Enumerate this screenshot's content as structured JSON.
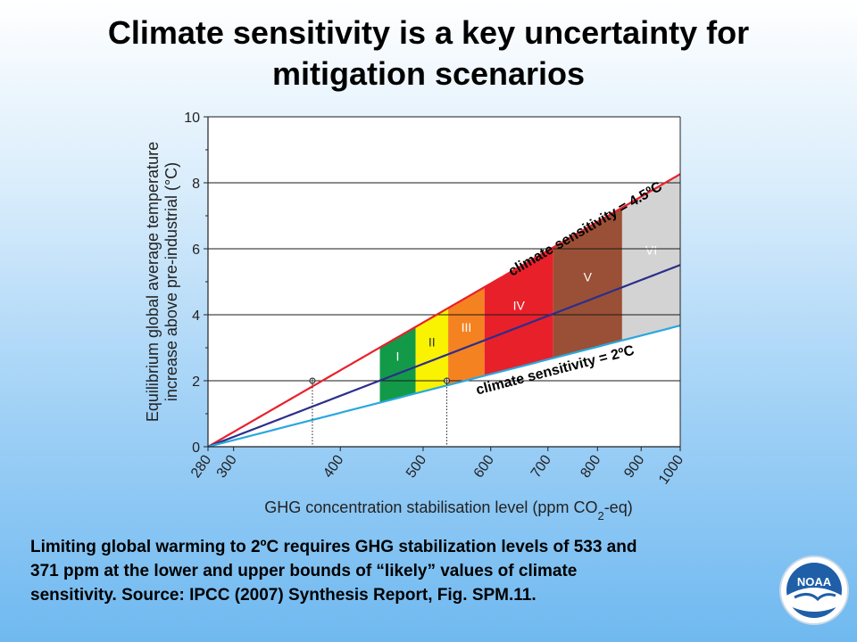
{
  "slide": {
    "title": "Climate sensitivity is a key uncertainty for\nmitigation scenarios",
    "caption_line1": "Limiting global warming to 2ºC requires GHG stabilization levels of 533 and",
    "caption_line2": "371 ppm at the lower and upper bounds of “likely” values of climate",
    "caption_line3": "sensitivity.  Source: IPCC (2007) Synthesis Report, Fig. SPM.11.",
    "logo_text": "NOAA"
  },
  "chart_data": {
    "type": "area",
    "xlabel": "GHG concentration stabilisation level (ppm CO",
    "xlabel_sub": "2",
    "xlabel_suffix": "-eq)",
    "ylabel_line1": "Equilibrium global average temperature",
    "ylabel_line2": "increase above pre-industrial (°C)",
    "x_scale": "log",
    "xlim": [
      280,
      1000
    ],
    "ylim": [
      0,
      10
    ],
    "x_ticks": [
      280,
      300,
      400,
      500,
      600,
      700,
      800,
      900,
      1000
    ],
    "y_ticks": [
      0,
      2,
      4,
      6,
      8,
      10
    ],
    "grid": "horizontal",
    "climate_sensitivities": [
      2.0,
      3.0,
      4.5
    ],
    "curves": [
      {
        "name": "climate sensitivity = 4.5ºC",
        "sensitivity": 4.5,
        "color": "#e8202a"
      },
      {
        "name": "",
        "sensitivity": 3.0,
        "color": "#2b2e8c"
      },
      {
        "name": "climate sensitivity = 2ºC",
        "sensitivity": 2.0,
        "color": "#29a8e0"
      }
    ],
    "categories": [
      {
        "label": "I",
        "range": [
          445,
          490
        ],
        "color": "#129a48"
      },
      {
        "label": "II",
        "range": [
          490,
          535
        ],
        "color": "#f9f200"
      },
      {
        "label": "III",
        "range": [
          535,
          590
        ],
        "color": "#f58220"
      },
      {
        "label": "IV",
        "range": [
          590,
          710
        ],
        "color": "#e8202a"
      },
      {
        "label": "V",
        "range": [
          710,
          855
        ],
        "color": "#9a5036"
      },
      {
        "label": "VI",
        "range": [
          855,
          1000
        ],
        "color": "#d3d3d3"
      }
    ],
    "markers": [
      {
        "x": 371,
        "y": 2
      },
      {
        "x": 533,
        "y": 2
      }
    ]
  }
}
